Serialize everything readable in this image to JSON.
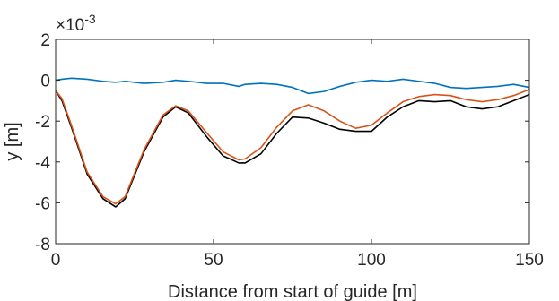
{
  "chart_data": {
    "type": "line",
    "title": "",
    "xlabel": "Distance from start of guide [m]",
    "ylabel": "y [m]",
    "y_exponent_base": "×10",
    "y_exponent_power": "-3",
    "xlim": [
      0,
      150
    ],
    "ylim": [
      -8,
      2
    ],
    "x_ticks": [
      0,
      50,
      100,
      150
    ],
    "y_ticks": [
      2,
      0,
      -2,
      -4,
      -6,
      -8
    ],
    "grid": false,
    "legend": "none",
    "x": [
      0,
      2,
      5,
      10,
      15,
      19,
      22,
      28,
      34,
      38,
      42,
      48,
      53,
      58,
      60,
      65,
      70,
      75,
      80,
      85,
      90,
      95,
      100,
      105,
      110,
      115,
      120,
      125,
      130,
      135,
      140,
      145,
      150
    ],
    "series": [
      {
        "color": "#0072BD",
        "values": [
          0.0,
          0.05,
          0.1,
          0.05,
          -0.05,
          -0.1,
          -0.05,
          -0.15,
          -0.1,
          0.0,
          -0.05,
          -0.15,
          -0.15,
          -0.3,
          -0.2,
          -0.15,
          -0.2,
          -0.35,
          -0.65,
          -0.55,
          -0.3,
          -0.1,
          0.0,
          -0.05,
          0.05,
          -0.05,
          -0.15,
          -0.35,
          -0.4,
          -0.35,
          -0.3,
          -0.2,
          -0.35
        ]
      },
      {
        "color": "#000000",
        "values": [
          -0.5,
          -1.0,
          -2.3,
          -4.6,
          -5.8,
          -6.2,
          -5.8,
          -3.5,
          -1.8,
          -1.3,
          -1.6,
          -2.8,
          -3.7,
          -4.05,
          -4.05,
          -3.6,
          -2.6,
          -1.8,
          -1.85,
          -2.1,
          -2.4,
          -2.5,
          -2.5,
          -1.8,
          -1.3,
          -1.0,
          -1.05,
          -1.0,
          -1.3,
          -1.4,
          -1.3,
          -1.0,
          -0.7
        ]
      },
      {
        "color": "#D95319",
        "values": [
          -0.5,
          -0.9,
          -2.2,
          -4.5,
          -5.7,
          -6.05,
          -5.7,
          -3.4,
          -1.7,
          -1.25,
          -1.5,
          -2.6,
          -3.5,
          -3.9,
          -3.85,
          -3.3,
          -2.3,
          -1.5,
          -1.2,
          -1.5,
          -2.0,
          -2.35,
          -2.2,
          -1.6,
          -1.05,
          -0.8,
          -0.7,
          -0.75,
          -0.95,
          -1.05,
          -0.95,
          -0.75,
          -0.45
        ]
      }
    ]
  }
}
